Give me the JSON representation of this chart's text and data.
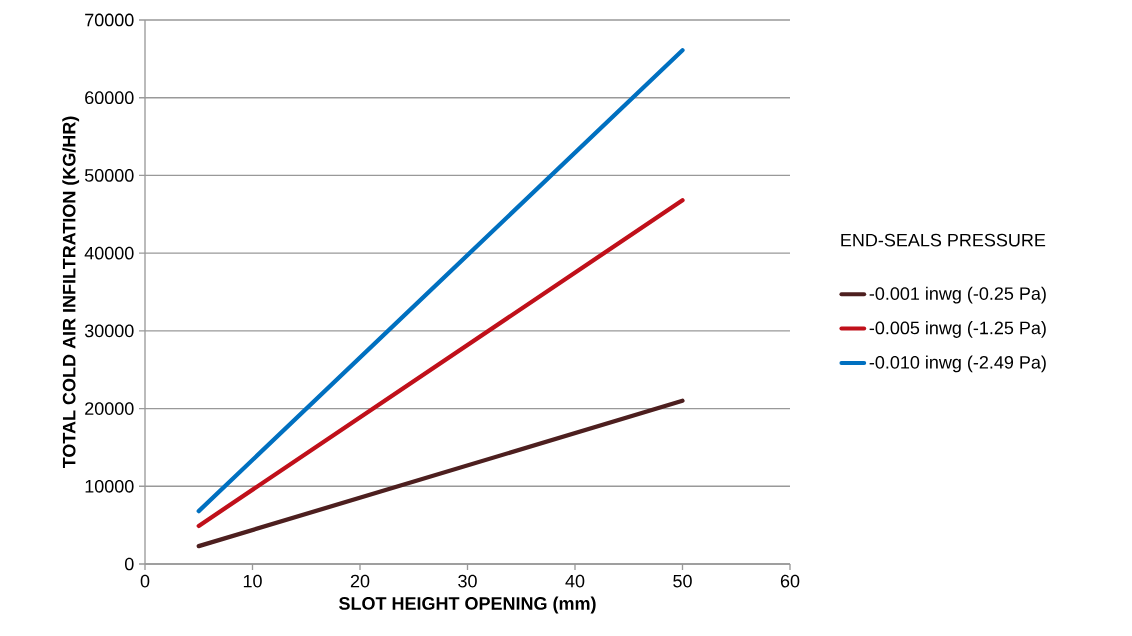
{
  "chart_data": {
    "type": "line",
    "xlabel": "SLOT HEIGHT OPENING (mm)",
    "ylabel": "TOTAL COLD AIR INFILTRATION (KG/HR)",
    "legend_title": "END-SEALS PRESSURE",
    "x": [
      5,
      50
    ],
    "series": [
      {
        "name": "-0.001 inwg (-0.25 Pa)",
        "color": "#4d1f1f",
        "values": [
          2300,
          21000
        ]
      },
      {
        "name": "-0.005 inwg (-1.25 Pa)",
        "color": "#c0101a",
        "values": [
          4900,
          46800
        ]
      },
      {
        "name": "-0.010 inwg (-2.49 Pa)",
        "color": "#0070c0",
        "values": [
          6800,
          66100
        ]
      }
    ],
    "xlim": [
      0,
      60
    ],
    "ylim": [
      0,
      70000
    ],
    "xticks": [
      0,
      10,
      20,
      30,
      40,
      50,
      60
    ],
    "yticks": [
      0,
      10000,
      20000,
      30000,
      40000,
      50000,
      60000,
      70000
    ],
    "grid": "y",
    "legend": "right"
  }
}
